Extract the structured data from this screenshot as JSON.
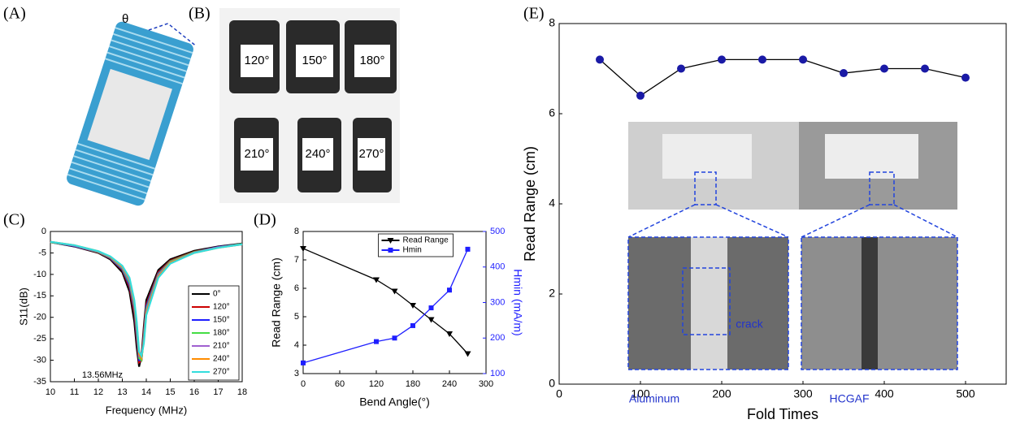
{
  "panels": {
    "A": {
      "label": "(A)",
      "angle": "θ"
    },
    "B": {
      "label": "(B)",
      "photo_labels": [
        "120°",
        "150°",
        "180°",
        "210°",
        "240°",
        "270°"
      ]
    },
    "C": {
      "label": "(C)"
    },
    "D": {
      "label": "(D)"
    },
    "E": {
      "label": "(E)"
    }
  },
  "chart_data": [
    {
      "type": "line",
      "xlabel": "Frequency (MHz)",
      "ylabel": "S11(dB)",
      "annotations": [
        "13.56MHz"
      ],
      "x": [
        10,
        11,
        12,
        12.5,
        13,
        13.3,
        13.5,
        13.6,
        13.7,
        13.8,
        13.9,
        14,
        14.5,
        15,
        16,
        17,
        18
      ],
      "xlim": [
        10,
        18
      ],
      "xticks": [
        10,
        11,
        12,
        13,
        14,
        15,
        16,
        17,
        18
      ],
      "ylim": [
        -35,
        0
      ],
      "yticks": [
        0,
        -5,
        -10,
        -15,
        -20,
        -25,
        -30,
        -35
      ],
      "legend": "lower right",
      "series": [
        {
          "name": "0°",
          "color": "#000000",
          "values": [
            -2.5,
            -3.5,
            -5,
            -6.5,
            -9.5,
            -14,
            -21,
            -27,
            -31.5,
            -29,
            -22,
            -16,
            -9,
            -6.5,
            -4.5,
            -3.5,
            -2.8
          ]
        },
        {
          "name": "120°",
          "color": "#cc0000",
          "values": [
            -2.5,
            -3.4,
            -4.9,
            -6.3,
            -9,
            -13,
            -19,
            -25,
            -30.5,
            -30,
            -23,
            -17,
            -9.5,
            -6.8,
            -4.7,
            -3.6,
            -2.9
          ]
        },
        {
          "name": "150°",
          "color": "#1f1fff",
          "values": [
            -2.5,
            -3.4,
            -4.8,
            -6.2,
            -8.8,
            -12.5,
            -18,
            -24,
            -30,
            -30,
            -24,
            -17.5,
            -9.8,
            -7,
            -4.8,
            -3.6,
            -2.9
          ]
        },
        {
          "name": "180°",
          "color": "#44dd44",
          "values": [
            -2.5,
            -3.3,
            -4.8,
            -6.1,
            -8.6,
            -12,
            -17.5,
            -23,
            -29.5,
            -30,
            -24.5,
            -18,
            -10,
            -7,
            -4.8,
            -3.7,
            -2.9
          ]
        },
        {
          "name": "210°",
          "color": "#a060d0",
          "values": [
            -2.4,
            -3.3,
            -4.7,
            -6,
            -8.4,
            -11.5,
            -17,
            -22,
            -29,
            -29.5,
            -25,
            -18.5,
            -10.2,
            -7.2,
            -4.9,
            -3.7,
            -3
          ]
        },
        {
          "name": "240°",
          "color": "#ff8c00",
          "values": [
            -2.4,
            -3.2,
            -4.6,
            -5.9,
            -8.2,
            -11,
            -16.5,
            -21.5,
            -28.5,
            -29.5,
            -25.5,
            -19,
            -10.5,
            -7.3,
            -5,
            -3.8,
            -3
          ]
        },
        {
          "name": "270°",
          "color": "#33dddd",
          "values": [
            -2.4,
            -3.2,
            -4.6,
            -5.8,
            -8,
            -10.8,
            -16,
            -21,
            -28,
            -29,
            -26,
            -19.5,
            -10.8,
            -7.5,
            -5,
            -3.8,
            -3
          ]
        }
      ]
    },
    {
      "type": "line",
      "xlabel": "Bend Angle(°)",
      "ylabel": "Read Range (cm)",
      "y2label": "Hmin (mA/m)",
      "x": [
        0,
        120,
        150,
        180,
        210,
        240,
        270
      ],
      "xlim": [
        0,
        300
      ],
      "xticks": [
        0,
        60,
        120,
        180,
        240,
        300
      ],
      "ylim": [
        3,
        8
      ],
      "yticks": [
        3,
        4,
        5,
        6,
        7,
        8
      ],
      "y2lim": [
        100,
        500
      ],
      "y2ticks": [
        100,
        200,
        300,
        400,
        500
      ],
      "legend": "upper right",
      "series": [
        {
          "name": "Read Range",
          "color": "#000000",
          "marker": "triangle",
          "values": [
            7.4,
            6.3,
            5.9,
            5.4,
            4.9,
            4.4,
            3.7
          ]
        },
        {
          "name": "Hmin",
          "color": "#1f1fff",
          "marker": "square",
          "axis": "y2",
          "values": [
            130,
            190,
            200,
            235,
            285,
            335,
            450
          ]
        }
      ]
    },
    {
      "type": "line",
      "xlabel": "Fold Times",
      "ylabel": "Read Range (cm)",
      "annotations": [
        "crack",
        "Aluminum",
        "HCGAF"
      ],
      "x": [
        50,
        100,
        150,
        200,
        250,
        300,
        350,
        400,
        450,
        500
      ],
      "xlim": [
        0,
        550
      ],
      "xticks": [
        0,
        100,
        200,
        300,
        400,
        500
      ],
      "ylim": [
        0,
        8
      ],
      "yticks": [
        0,
        2,
        4,
        6,
        8
      ],
      "series": [
        {
          "name": "Read Range",
          "color": "#000000",
          "marker": "circle",
          "marker_color": "#1a1aa6",
          "values": [
            7.2,
            6.4,
            7.0,
            7.2,
            7.2,
            7.2,
            6.9,
            7.0,
            7.0,
            6.8
          ]
        }
      ]
    }
  ]
}
